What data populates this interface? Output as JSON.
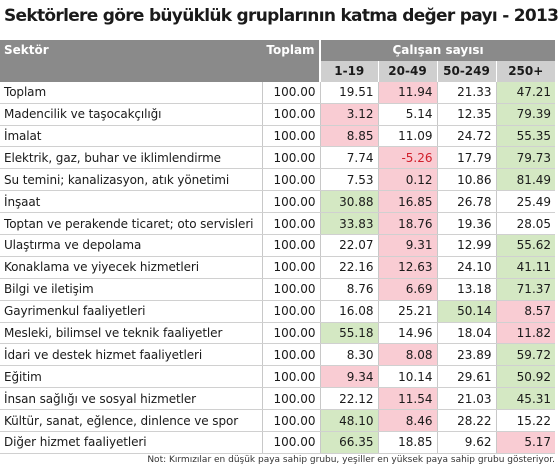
{
  "title": "Sektörlere göre büyüklük gruplarının katma değer payı - 2013",
  "unit": "(%)",
  "headers": {
    "sector": "Sektör",
    "total": "Toplam",
    "group": "Çalışan sayısı",
    "groups": [
      "1-19",
      "20-49",
      "50-249",
      "250+"
    ]
  },
  "colors": {
    "red_highlight": "#f9ccd3",
    "green_highlight": "#d4e8c3",
    "header_dark": "#8a8a8a",
    "header_light": "#cfcfcf",
    "negative_text": "#d0202c"
  },
  "rows": [
    {
      "name": "Toplam",
      "total": "100.00",
      "values": [
        "19.51",
        "11.94",
        "21.33",
        "47.21"
      ],
      "hl": [
        "",
        "red",
        "",
        "green"
      ]
    },
    {
      "name": "Madencilik ve taşocakçılığı",
      "total": "100.00",
      "values": [
        "3.12",
        "5.14",
        "12.35",
        "79.39"
      ],
      "hl": [
        "red",
        "",
        "",
        "green"
      ]
    },
    {
      "name": "İmalat",
      "total": "100.00",
      "values": [
        "8.85",
        "11.09",
        "24.72",
        "55.35"
      ],
      "hl": [
        "red",
        "",
        "",
        "green"
      ]
    },
    {
      "name": "Elektrik, gaz, buhar ve iklimlendirme",
      "total": "100.00",
      "values": [
        "7.74",
        "-5.26",
        "17.79",
        "79.73"
      ],
      "hl": [
        "",
        "red",
        "",
        "green"
      ]
    },
    {
      "name": "Su temini; kanalizasyon, atık yönetimi",
      "total": "100.00",
      "values": [
        "7.53",
        "0.12",
        "10.86",
        "81.49"
      ],
      "hl": [
        "",
        "red",
        "",
        "green"
      ]
    },
    {
      "name": "İnşaat",
      "total": "100.00",
      "values": [
        "30.88",
        "16.85",
        "26.78",
        "25.49"
      ],
      "hl": [
        "green",
        "red",
        "",
        ""
      ]
    },
    {
      "name": "Toptan ve perakende ticaret; oto servisleri",
      "total": "100.00",
      "values": [
        "33.83",
        "18.76",
        "19.36",
        "28.05"
      ],
      "hl": [
        "green",
        "red",
        "",
        ""
      ]
    },
    {
      "name": "Ulaştırma ve depolama",
      "total": "100.00",
      "values": [
        "22.07",
        "9.31",
        "12.99",
        "55.62"
      ],
      "hl": [
        "",
        "red",
        "",
        "green"
      ]
    },
    {
      "name": "Konaklama ve yiyecek hizmetleri",
      "total": "100.00",
      "values": [
        "22.16",
        "12.63",
        "24.10",
        "41.11"
      ],
      "hl": [
        "",
        "red",
        "",
        "green"
      ]
    },
    {
      "name": "Bilgi ve iletişim",
      "total": "100.00",
      "values": [
        "8.76",
        "6.69",
        "13.18",
        "71.37"
      ],
      "hl": [
        "",
        "red",
        "",
        "green"
      ]
    },
    {
      "name": "Gayrimenkul faaliyetleri",
      "total": "100.00",
      "values": [
        "16.08",
        "25.21",
        "50.14",
        "8.57"
      ],
      "hl": [
        "",
        "",
        "green",
        "red"
      ]
    },
    {
      "name": "Mesleki, bilimsel ve teknik faaliyetler",
      "total": "100.00",
      "values": [
        "55.18",
        "14.96",
        "18.04",
        "11.82"
      ],
      "hl": [
        "green",
        "",
        "",
        "red"
      ]
    },
    {
      "name": "İdari ve destek hizmet faaliyetleri",
      "total": "100.00",
      "values": [
        "8.30",
        "8.08",
        "23.89",
        "59.72"
      ],
      "hl": [
        "",
        "red",
        "",
        "green"
      ]
    },
    {
      "name": "Eğitim",
      "total": "100.00",
      "values": [
        "9.34",
        "10.14",
        "29.61",
        "50.92"
      ],
      "hl": [
        "red",
        "",
        "",
        "green"
      ]
    },
    {
      "name": "İnsan sağlığı ve sosyal hizmetler",
      "total": "100.00",
      "values": [
        "22.12",
        "11.54",
        "21.03",
        "45.31"
      ],
      "hl": [
        "",
        "red",
        "",
        "green"
      ]
    },
    {
      "name": "Kültür, sanat, eğlence, dinlence ve spor",
      "total": "100.00",
      "values": [
        "48.10",
        "8.46",
        "28.22",
        "15.22"
      ],
      "hl": [
        "green",
        "red",
        "",
        ""
      ]
    },
    {
      "name": "Diğer hizmet faaliyetleri",
      "total": "100.00",
      "values": [
        "66.35",
        "18.85",
        "9.62",
        "5.17"
      ],
      "hl": [
        "green",
        "",
        "",
        "red"
      ]
    }
  ],
  "note": "Not: Kırmızılar en düşük paya sahip grubu, yeşiller en yüksek paya sahip grubu gösteriyor."
}
